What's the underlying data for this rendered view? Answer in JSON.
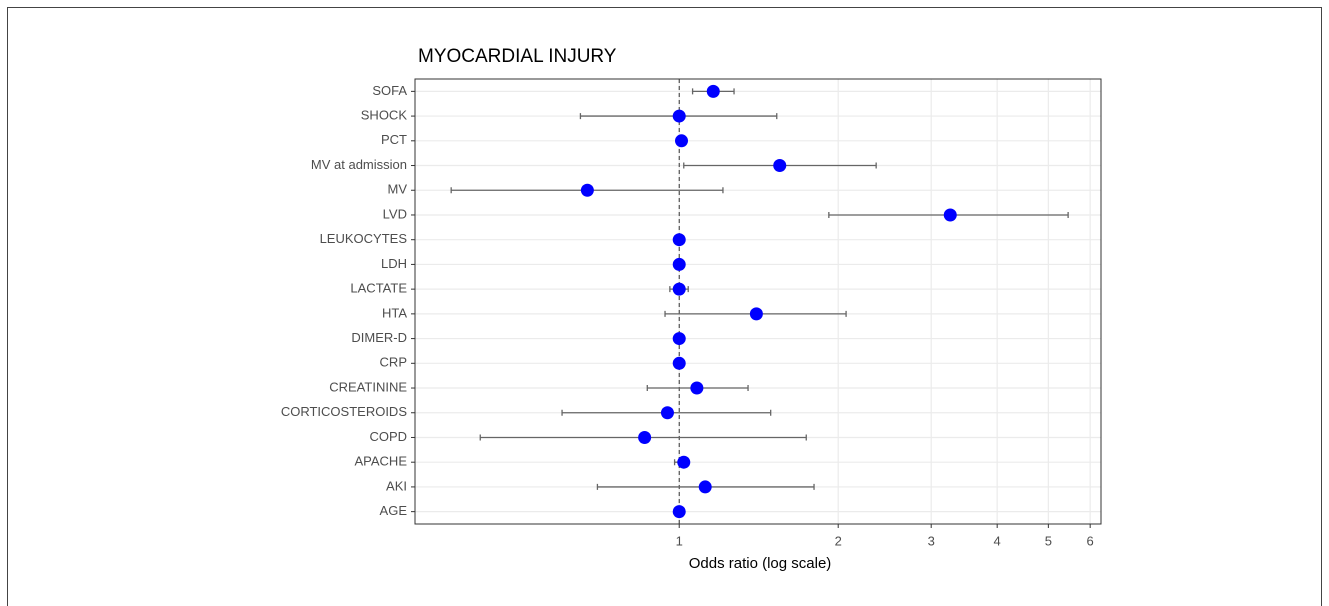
{
  "chart_data": {
    "type": "forest",
    "title": "MYOCARDIAL INJURY",
    "x_label": "Odds ratio (log scale)",
    "x_scale": "log",
    "grid": true,
    "color": "#0000ff",
    "reference_line": 1,
    "xlim": [
      0.316,
      6.29
    ],
    "xticks": [
      1,
      2,
      3,
      4,
      5,
      6
    ],
    "categories": [
      "SOFA",
      "SHOCK",
      "PCT",
      "MV at admission",
      "MV",
      "LVD",
      "LEUKOCYTES",
      "LDH",
      "LACTATE",
      "HTA",
      "DIMER-D",
      "CRP",
      "CREATININE",
      "CORTICOSTEROIDS",
      "COPD",
      "APACHE",
      "AKI",
      "AGE"
    ],
    "values": [
      1.16,
      1.0,
      1.01,
      1.55,
      0.67,
      3.26,
      1.0,
      1.0,
      1.0,
      1.4,
      1.0,
      1.0,
      1.08,
      0.95,
      0.86,
      1.02,
      1.12,
      1.0
    ],
    "lower": [
      1.06,
      0.65,
      1.0,
      1.02,
      0.37,
      1.92,
      0.99,
      0.99,
      0.96,
      0.94,
      0.99,
      0.99,
      0.87,
      0.6,
      0.42,
      0.98,
      0.7,
      0.99
    ],
    "upper": [
      1.27,
      1.53,
      1.02,
      2.36,
      1.21,
      5.45,
      1.01,
      1.01,
      1.04,
      2.07,
      1.01,
      1.01,
      1.35,
      1.49,
      1.74,
      1.04,
      1.8,
      1.01
    ]
  }
}
